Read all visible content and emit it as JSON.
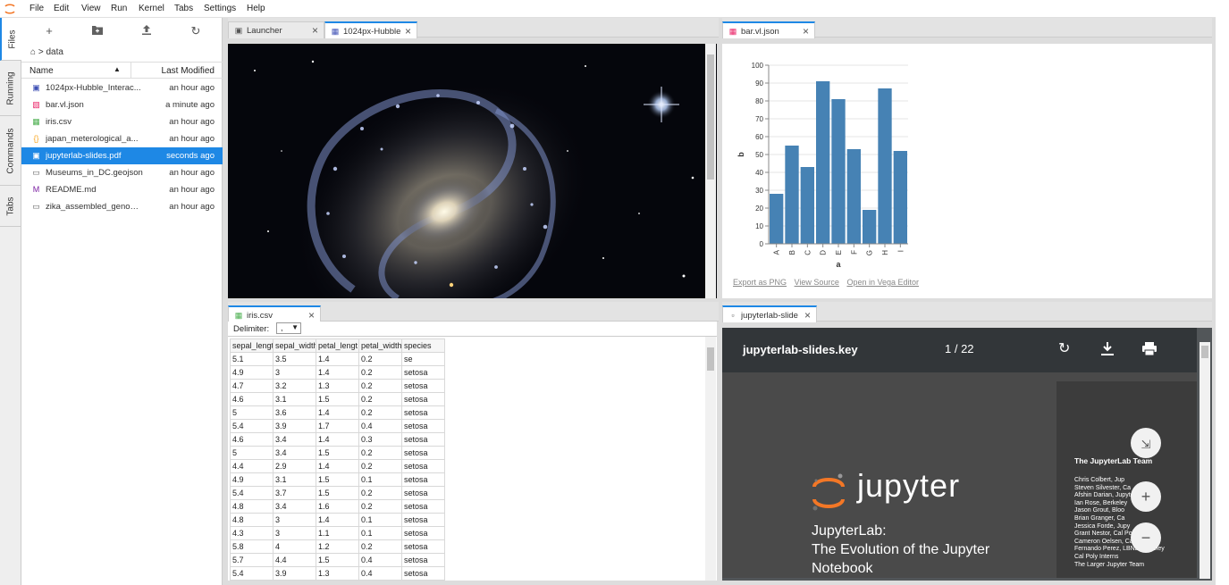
{
  "menu": [
    "File",
    "Edit",
    "View",
    "Run",
    "Kernel",
    "Tabs",
    "Settings",
    "Help"
  ],
  "left_tabs": [
    "Files",
    "Running",
    "Commands",
    "Tabs"
  ],
  "filebrowser": {
    "breadcrumb": "data",
    "col_name": "Name",
    "col_modified": "Last Modified",
    "files": [
      {
        "name": "1024px-Hubble_Interac...",
        "modified": "an hour ago",
        "icon": "image-icon",
        "selected": false
      },
      {
        "name": "bar.vl.json",
        "modified": "a minute ago",
        "icon": "vega-icon",
        "selected": false
      },
      {
        "name": "iris.csv",
        "modified": "an hour ago",
        "icon": "spreadsheet-icon",
        "selected": false
      },
      {
        "name": "japan_meterological_a...",
        "modified": "an hour ago",
        "icon": "json-icon",
        "selected": false
      },
      {
        "name": "jupyterlab-slides.pdf",
        "modified": "seconds ago",
        "icon": "pdf-icon",
        "selected": true
      },
      {
        "name": "Museums_in_DC.geojson",
        "modified": "an hour ago",
        "icon": "file-icon",
        "selected": false
      },
      {
        "name": "README.md",
        "modified": "an hour ago",
        "icon": "markdown-icon",
        "selected": false
      },
      {
        "name": "zika_assembled_genom...",
        "modified": "an hour ago",
        "icon": "file-icon",
        "selected": false
      }
    ]
  },
  "tabs": {
    "launcher": "Launcher",
    "hubble": "1024px-Hubble",
    "bar": "bar.vl.json",
    "iris": "iris.csv",
    "slides": "jupyterlab-slide"
  },
  "csv": {
    "delimiter_label": "Delimiter:",
    "delimiter_value": ",",
    "headers": [
      "sepal_lengt",
      "sepal_width",
      "petal_lengt",
      "petal_width",
      "species"
    ],
    "rows": [
      [
        "5.1",
        "3.5",
        "1.4",
        "0.2",
        "se"
      ],
      [
        "4.9",
        "3",
        "1.4",
        "0.2",
        "setosa"
      ],
      [
        "4.7",
        "3.2",
        "1.3",
        "0.2",
        "setosa"
      ],
      [
        "4.6",
        "3.1",
        "1.5",
        "0.2",
        "setosa"
      ],
      [
        "5",
        "3.6",
        "1.4",
        "0.2",
        "setosa"
      ],
      [
        "5.4",
        "3.9",
        "1.7",
        "0.4",
        "setosa"
      ],
      [
        "4.6",
        "3.4",
        "1.4",
        "0.3",
        "setosa"
      ],
      [
        "5",
        "3.4",
        "1.5",
        "0.2",
        "setosa"
      ],
      [
        "4.4",
        "2.9",
        "1.4",
        "0.2",
        "setosa"
      ],
      [
        "4.9",
        "3.1",
        "1.5",
        "0.1",
        "setosa"
      ],
      [
        "5.4",
        "3.7",
        "1.5",
        "0.2",
        "setosa"
      ],
      [
        "4.8",
        "3.4",
        "1.6",
        "0.2",
        "setosa"
      ],
      [
        "4.8",
        "3",
        "1.4",
        "0.1",
        "setosa"
      ],
      [
        "4.3",
        "3",
        "1.1",
        "0.1",
        "setosa"
      ],
      [
        "5.8",
        "4",
        "1.2",
        "0.2",
        "setosa"
      ],
      [
        "5.7",
        "4.4",
        "1.5",
        "0.4",
        "setosa"
      ],
      [
        "5.4",
        "3.9",
        "1.3",
        "0.4",
        "setosa"
      ]
    ]
  },
  "chart_data": {
    "type": "bar",
    "categories": [
      "A",
      "B",
      "C",
      "D",
      "E",
      "F",
      "G",
      "H",
      "I"
    ],
    "values": [
      28,
      55,
      43,
      91,
      81,
      53,
      19,
      87,
      52
    ],
    "title": "",
    "xlabel": "a",
    "ylabel": "b",
    "ylim": [
      0,
      100
    ],
    "yticks": [
      0,
      10,
      20,
      30,
      40,
      50,
      60,
      70,
      80,
      90,
      100
    ],
    "bar_color": "#4682b4",
    "grid": true
  },
  "vega_links": [
    "Export as PNG",
    "View Source",
    "Open in Vega Editor"
  ],
  "pdf": {
    "filename": "jupyterlab-slides.key",
    "page": "1 / 22",
    "wordmark": "jupyter",
    "title_lines": [
      "JupyterLab:",
      "The Evolution of the Jupyter",
      "Notebook"
    ],
    "team_title": "The JupyterLab Team",
    "team": [
      "Chris Colbert, Jup",
      "Steven Silvester, Ca",
      "Afshin Darian, Jupyter",
      "Ian Rose, Berkeley",
      "Jason Grout, Bloo",
      "Brian Granger, Ca",
      "Jessica Forde, Jupy",
      "Grant Nestor, Cal Poly",
      "Cameron Oelsen, Cal Poly",
      "Fernando Perez, LBNL/Berkeley",
      "Cal Poly Interns",
      "The Larger Jupyter Team"
    ]
  },
  "colors": {
    "accent": "#1e88e5",
    "jupyter_orange": "#f37726"
  }
}
